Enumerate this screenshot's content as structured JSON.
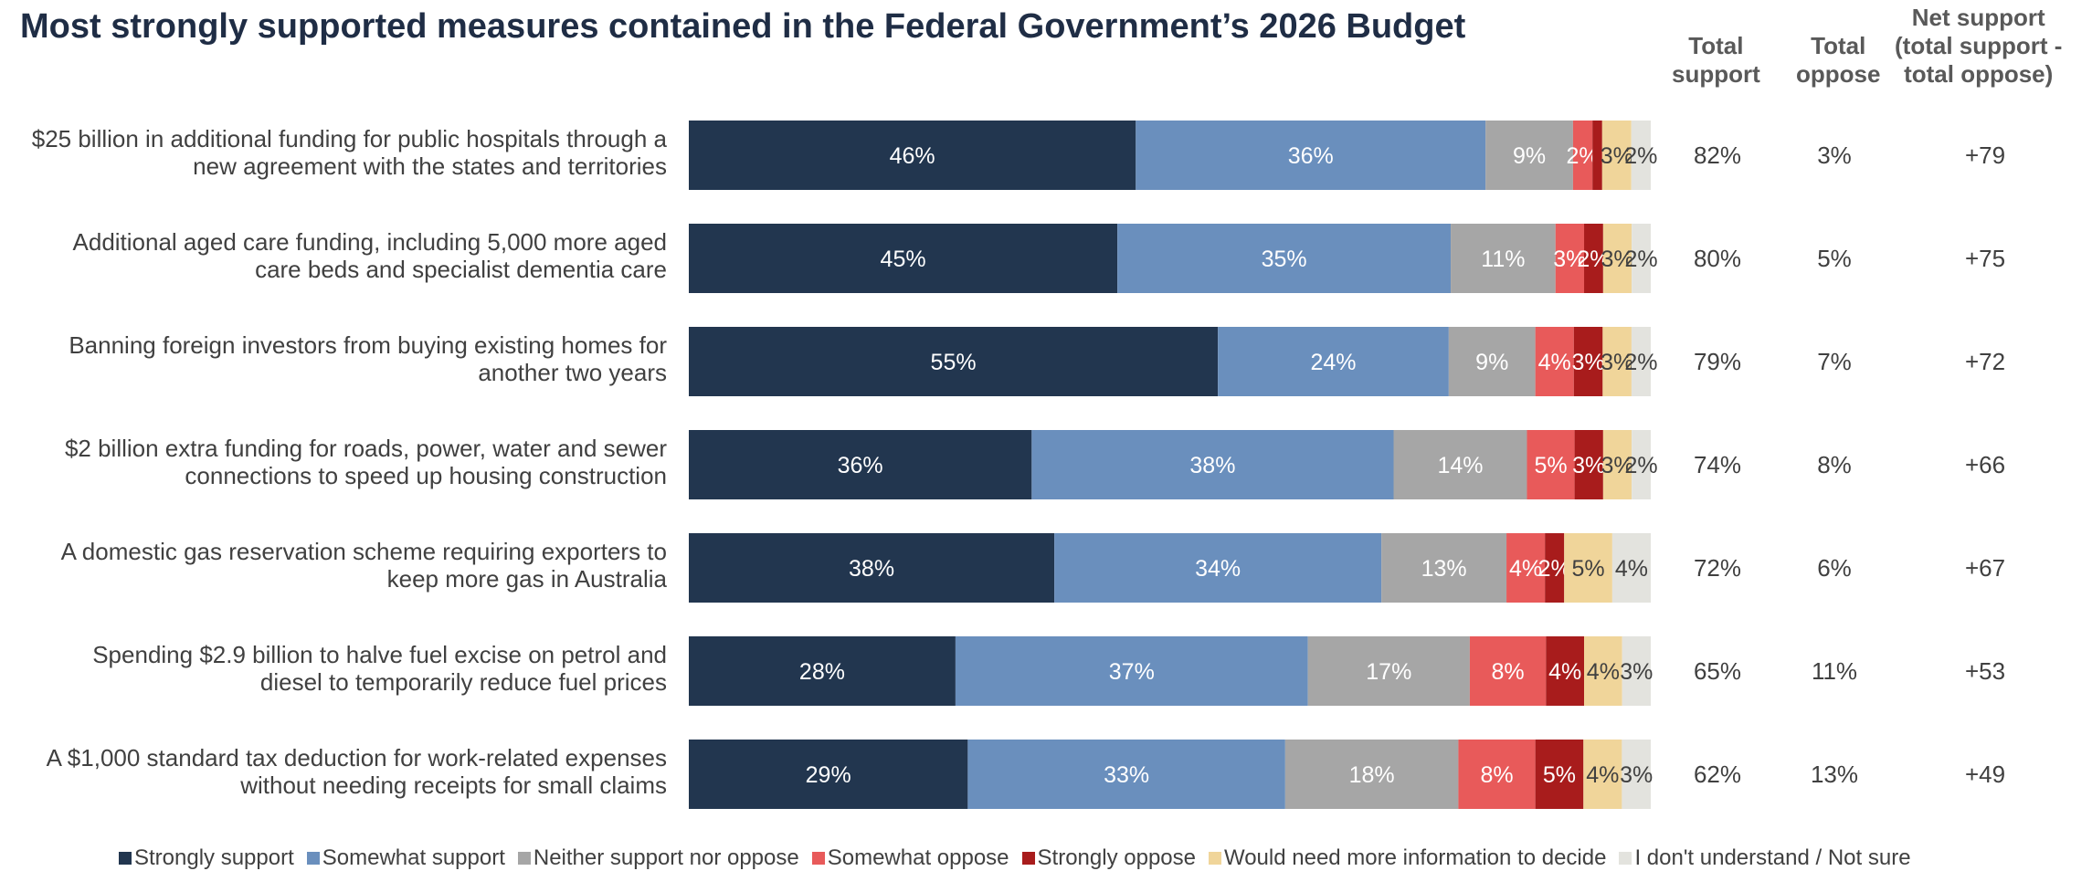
{
  "chart_data": {
    "type": "bar",
    "orientation": "horizontal",
    "stacked": true,
    "title": "Most strongly supported measures contained in the Federal Government’s 2026 Budget",
    "legend_position": "bottom",
    "categories": [
      "$25 billion in additional funding for public hospitals through a new agreement with the states and territories",
      "Additional aged care funding, including 5,000 more aged care beds and specialist dementia care",
      "Banning foreign investors from buying existing homes for another two years",
      "$2 billion extra funding for roads, power, water and sewer connections to speed up housing construction",
      "A domestic gas reservation scheme requiring exporters to keep more gas in Australia",
      "Spending $2.9 billion to halve fuel excise on petrol and diesel to temporarily reduce fuel prices",
      "A $1,000 standard tax deduction for work-related expenses without needing receipts for small claims"
    ],
    "category_lines": [
      [
        "$25 billion in additional funding for public hospitals through a",
        "new agreement with the states and territories"
      ],
      [
        "Additional aged care funding, including 5,000 more aged",
        "care beds and specialist dementia care"
      ],
      [
        "Banning foreign investors from buying existing homes for",
        "another two years"
      ],
      [
        "$2 billion extra funding for roads, power, water and sewer",
        "connections to speed up housing construction"
      ],
      [
        "A domestic gas reservation scheme requiring exporters to",
        "keep more gas in Australia"
      ],
      [
        "Spending $2.9 billion to halve fuel excise on petrol and",
        "diesel to temporarily reduce fuel prices"
      ],
      [
        "A $1,000 standard tax deduction for work-related expenses",
        "without needing receipts for small claims"
      ]
    ],
    "series": [
      {
        "name": "Strongly support",
        "color": "#22364f",
        "values": [
          46,
          45,
          55,
          36,
          38,
          28,
          29
        ]
      },
      {
        "name": "Somewhat support",
        "color": "#6a8fbd",
        "values": [
          36,
          35,
          24,
          38,
          34,
          37,
          33
        ]
      },
      {
        "name": "Neither support nor oppose",
        "color": "#a6a6a6",
        "values": [
          9,
          11,
          9,
          14,
          13,
          17,
          18
        ]
      },
      {
        "name": "Somewhat oppose",
        "color": "#e85a5a",
        "values": [
          2,
          3,
          4,
          5,
          4,
          8,
          8
        ]
      },
      {
        "name": "Strongly oppose",
        "color": "#a81c1c",
        "values": [
          1,
          2,
          3,
          3,
          2,
          4,
          5
        ]
      },
      {
        "name": "Would need more information to decide",
        "color": "#f0d59a",
        "values": [
          3,
          3,
          3,
          3,
          5,
          4,
          4
        ]
      },
      {
        "name": "I don't understand / Not sure",
        "color": "#e3e3de",
        "values": [
          2,
          2,
          2,
          2,
          4,
          3,
          3
        ]
      }
    ],
    "label_colors": [
      "#ffffff",
      "#ffffff",
      "#ffffff",
      "#ffffff",
      "#ffffff",
      "#404040",
      "#404040"
    ],
    "value_labels": [
      [
        "46%",
        "36%",
        "9%",
        "2%",
        "",
        "3%",
        "2%"
      ],
      [
        "45%",
        "35%",
        "11%",
        "3%",
        "2%",
        "3%",
        "2%"
      ],
      [
        "55%",
        "24%",
        "9%",
        "4%",
        "3%",
        "3%",
        "2%"
      ],
      [
        "36%",
        "38%",
        "14%",
        "5%",
        "3%",
        "3%",
        "2%"
      ],
      [
        "38%",
        "34%",
        "13%",
        "4%",
        "2%",
        "5%",
        "4%"
      ],
      [
        "28%",
        "37%",
        "17%",
        "8%",
        "4%",
        "4%",
        "3%"
      ],
      [
        "29%",
        "33%",
        "18%",
        "8%",
        "5%",
        "4%",
        "3%"
      ]
    ],
    "summary_columns": [
      {
        "header": [
          "Total",
          "support"
        ],
        "values": [
          "82%",
          "80%",
          "79%",
          "74%",
          "72%",
          "65%",
          "62%"
        ]
      },
      {
        "header": [
          "Total",
          "oppose"
        ],
        "values": [
          "3%",
          "5%",
          "7%",
          "8%",
          "6%",
          "11%",
          "13%"
        ]
      },
      {
        "header": [
          "Net support",
          "(total support -",
          "total oppose)"
        ],
        "values": [
          "+79",
          "+75",
          "+72",
          "+66",
          "+67",
          "+53",
          "+49"
        ]
      }
    ]
  }
}
